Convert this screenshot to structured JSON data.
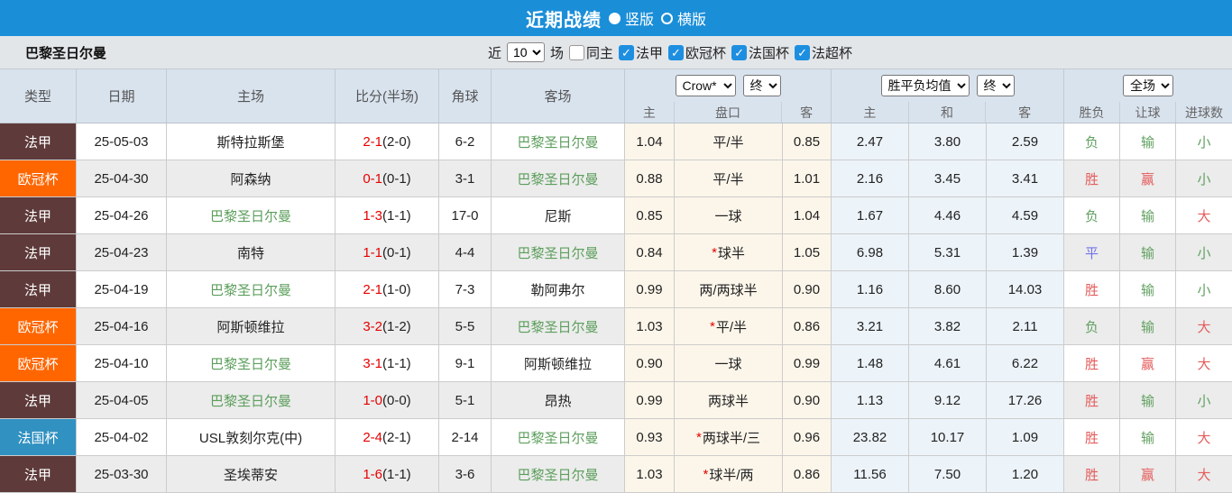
{
  "colors": {
    "topbar": "#1b8ed8",
    "ligue1": "#5e3a3a",
    "ucl": "#ff6600",
    "cdf": "#3191c1",
    "score_red": "#e60000",
    "team_green": "#5b9e5b",
    "result_red": "#e45c5c",
    "result_green": "#61a061",
    "result_blue": "#7273e9",
    "checkbox_blue": "#1e8fe0"
  },
  "title_bar": {
    "title": "近期战绩",
    "vertical_label": "竖版",
    "horizontal_label": "横版",
    "selected": "竖版"
  },
  "filter_bar": {
    "team": "巴黎圣日尔曼",
    "recent_label": "近",
    "recent_value": "10",
    "matches_label": "场",
    "same_home_label": "同主",
    "same_home_checked": false,
    "leagues": [
      {
        "label": "法甲",
        "checked": true
      },
      {
        "label": "欧冠杯",
        "checked": true
      },
      {
        "label": "法国杯",
        "checked": true
      },
      {
        "label": "法超杯",
        "checked": true
      }
    ]
  },
  "table": {
    "headers_left": {
      "type": "类型",
      "date": "日期",
      "home": "主场",
      "score": "比分(半场)",
      "corners": "角球",
      "away": "客场"
    },
    "selects": {
      "odds_company": "Crow*",
      "odds_time": "终",
      "avg": "胜平负均值",
      "avg_time": "终",
      "scope": "全场"
    },
    "sub_headers": {
      "odds_home": "主",
      "odds_handicap": "盘口",
      "odds_away": "客",
      "avg_home": "主",
      "avg_draw": "和",
      "avg_away": "客",
      "res_wdl": "胜负",
      "res_handicap": "让球",
      "res_goals": "进球数"
    },
    "rows": [
      {
        "type": "法甲",
        "type_key": "ligue1",
        "date": "25-05-03",
        "home": "斯特拉斯堡",
        "home_green": false,
        "score": "2-1",
        "half": "(2-0)",
        "corners": "6-2",
        "away": "巴黎圣日尔曼",
        "away_green": true,
        "odds_home": "1.04",
        "handicap": "平/半",
        "handicap_star": false,
        "odds_away": "0.85",
        "avg_home": "2.47",
        "avg_draw": "3.80",
        "avg_away": "2.59",
        "wdl": {
          "t": "负",
          "c": "g"
        },
        "let_goal": {
          "t": "输",
          "c": "g"
        },
        "goals": {
          "t": "小",
          "c": "g"
        }
      },
      {
        "type": "欧冠杯",
        "type_key": "ucl",
        "date": "25-04-30",
        "home": "阿森纳",
        "home_green": false,
        "score": "0-1",
        "half": "(0-1)",
        "corners": "3-1",
        "away": "巴黎圣日尔曼",
        "away_green": true,
        "odds_home": "0.88",
        "handicap": "平/半",
        "handicap_star": false,
        "odds_away": "1.01",
        "avg_home": "2.16",
        "avg_draw": "3.45",
        "avg_away": "3.41",
        "wdl": {
          "t": "胜",
          "c": "r"
        },
        "let_goal": {
          "t": "赢",
          "c": "r"
        },
        "goals": {
          "t": "小",
          "c": "g"
        }
      },
      {
        "type": "法甲",
        "type_key": "ligue1",
        "date": "25-04-26",
        "home": "巴黎圣日尔曼",
        "home_green": true,
        "score": "1-3",
        "half": "(1-1)",
        "corners": "17-0",
        "away": "尼斯",
        "away_green": false,
        "odds_home": "0.85",
        "handicap": "一球",
        "handicap_star": false,
        "odds_away": "1.04",
        "avg_home": "1.67",
        "avg_draw": "4.46",
        "avg_away": "4.59",
        "wdl": {
          "t": "负",
          "c": "g"
        },
        "let_goal": {
          "t": "输",
          "c": "g"
        },
        "goals": {
          "t": "大",
          "c": "r"
        }
      },
      {
        "type": "法甲",
        "type_key": "ligue1",
        "date": "25-04-23",
        "home": "南特",
        "home_green": false,
        "score": "1-1",
        "half": "(0-1)",
        "corners": "4-4",
        "away": "巴黎圣日尔曼",
        "away_green": true,
        "odds_home": "0.84",
        "handicap": "球半",
        "handicap_star": true,
        "odds_away": "1.05",
        "avg_home": "6.98",
        "avg_draw": "5.31",
        "avg_away": "1.39",
        "wdl": {
          "t": "平",
          "c": "b"
        },
        "let_goal": {
          "t": "输",
          "c": "g"
        },
        "goals": {
          "t": "小",
          "c": "g"
        }
      },
      {
        "type": "法甲",
        "type_key": "ligue1",
        "date": "25-04-19",
        "home": "巴黎圣日尔曼",
        "home_green": true,
        "score": "2-1",
        "half": "(1-0)",
        "corners": "7-3",
        "away": "勒阿弗尔",
        "away_green": false,
        "odds_home": "0.99",
        "handicap": "两/两球半",
        "handicap_star": false,
        "odds_away": "0.90",
        "avg_home": "1.16",
        "avg_draw": "8.60",
        "avg_away": "14.03",
        "wdl": {
          "t": "胜",
          "c": "r"
        },
        "let_goal": {
          "t": "输",
          "c": "g"
        },
        "goals": {
          "t": "小",
          "c": "g"
        }
      },
      {
        "type": "欧冠杯",
        "type_key": "ucl",
        "date": "25-04-16",
        "home": "阿斯顿维拉",
        "home_green": false,
        "score": "3-2",
        "half": "(1-2)",
        "corners": "5-5",
        "away": "巴黎圣日尔曼",
        "away_green": true,
        "odds_home": "1.03",
        "handicap": "平/半",
        "handicap_star": true,
        "odds_away": "0.86",
        "avg_home": "3.21",
        "avg_draw": "3.82",
        "avg_away": "2.11",
        "wdl": {
          "t": "负",
          "c": "g"
        },
        "let_goal": {
          "t": "输",
          "c": "g"
        },
        "goals": {
          "t": "大",
          "c": "r"
        }
      },
      {
        "type": "欧冠杯",
        "type_key": "ucl",
        "date": "25-04-10",
        "home": "巴黎圣日尔曼",
        "home_green": true,
        "score": "3-1",
        "half": "(1-1)",
        "corners": "9-1",
        "away": "阿斯顿维拉",
        "away_green": false,
        "odds_home": "0.90",
        "handicap": "一球",
        "handicap_star": false,
        "odds_away": "0.99",
        "avg_home": "1.48",
        "avg_draw": "4.61",
        "avg_away": "6.22",
        "wdl": {
          "t": "胜",
          "c": "r"
        },
        "let_goal": {
          "t": "赢",
          "c": "r"
        },
        "goals": {
          "t": "大",
          "c": "r"
        }
      },
      {
        "type": "法甲",
        "type_key": "ligue1",
        "date": "25-04-05",
        "home": "巴黎圣日尔曼",
        "home_green": true,
        "score": "1-0",
        "half": "(0-0)",
        "corners": "5-1",
        "away": "昂热",
        "away_green": false,
        "odds_home": "0.99",
        "handicap": "两球半",
        "handicap_star": false,
        "odds_away": "0.90",
        "avg_home": "1.13",
        "avg_draw": "9.12",
        "avg_away": "17.26",
        "wdl": {
          "t": "胜",
          "c": "r"
        },
        "let_goal": {
          "t": "输",
          "c": "g"
        },
        "goals": {
          "t": "小",
          "c": "g"
        }
      },
      {
        "type": "法国杯",
        "type_key": "cdf",
        "date": "25-04-02",
        "home": "USL敦刻尔克(中)",
        "home_green": false,
        "score": "2-4",
        "half": "(2-1)",
        "corners": "2-14",
        "away": "巴黎圣日尔曼",
        "away_green": true,
        "odds_home": "0.93",
        "handicap": "两球半/三",
        "handicap_star": true,
        "odds_away": "0.96",
        "avg_home": "23.82",
        "avg_draw": "10.17",
        "avg_away": "1.09",
        "wdl": {
          "t": "胜",
          "c": "r"
        },
        "let_goal": {
          "t": "输",
          "c": "g"
        },
        "goals": {
          "t": "大",
          "c": "r"
        }
      },
      {
        "type": "法甲",
        "type_key": "ligue1",
        "date": "25-03-30",
        "home": "圣埃蒂安",
        "home_green": false,
        "score": "1-6",
        "half": "(1-1)",
        "corners": "3-6",
        "away": "巴黎圣日尔曼",
        "away_green": true,
        "odds_home": "1.03",
        "handicap": "球半/两",
        "handicap_star": true,
        "odds_away": "0.86",
        "avg_home": "11.56",
        "avg_draw": "7.50",
        "avg_away": "1.20",
        "wdl": {
          "t": "胜",
          "c": "r"
        },
        "let_goal": {
          "t": "赢",
          "c": "r"
        },
        "goals": {
          "t": "大",
          "c": "r"
        }
      }
    ]
  }
}
